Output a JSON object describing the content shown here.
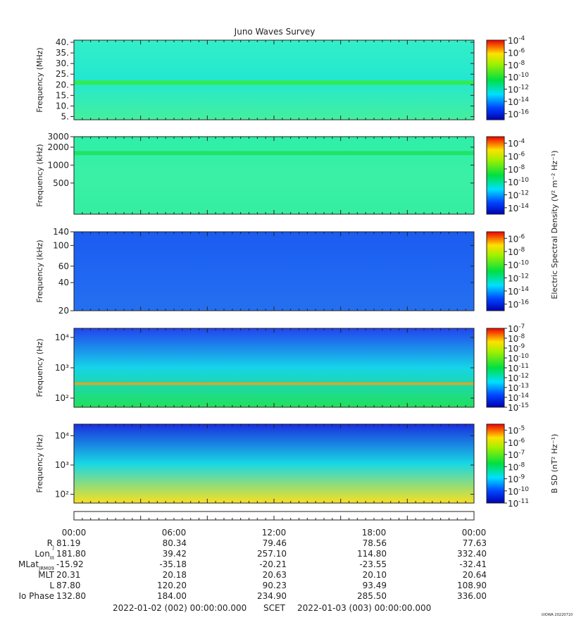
{
  "title": "Juno Waves Survey",
  "footer": {
    "start": "2022-01-02 (002) 00:00:00.000",
    "scet": "SCET",
    "end": "2022-01-03 (003) 00:00:00.000",
    "stamp": "UIOWA 20220710"
  },
  "chart_data": [
    {
      "type": "heatmap",
      "id": "p1",
      "ylabel": "Frequency (MHz)",
      "ytick_labels": [
        "5.",
        "10.",
        "15.",
        "20.",
        "25.",
        "30.",
        "35.",
        "40."
      ],
      "ytick_values": [
        5,
        10,
        15,
        20,
        25,
        30,
        35,
        40
      ],
      "ylim": [
        3.5,
        41
      ],
      "yscale": "linear",
      "colorbar": {
        "exponents": [
          "-4",
          "-6",
          "-8",
          "-10",
          "-12",
          "-14",
          "-16"
        ],
        "range": [
          -17,
          -4
        ],
        "label": ""
      },
      "background": [
        "#33eec8",
        "#22e8d0",
        "#44ef9e"
      ],
      "bands": [
        {
          "value": 21,
          "width": 2,
          "color": "#35ea45"
        }
      ]
    },
    {
      "type": "heatmap",
      "id": "p2",
      "ylabel": "Frequency (kHz)",
      "ytick_labels": [
        "500",
        "1000",
        "2000",
        "3000"
      ],
      "ytick_values": [
        500,
        1000,
        2000,
        3000
      ],
      "ylim": [
        150,
        3000
      ],
      "yscale": "log",
      "colorbar": {
        "exponents": [
          "-4",
          "-6",
          "-8",
          "-10",
          "-12",
          "-14"
        ],
        "range": [
          -15,
          -3
        ],
        "label": "Electric Spectral Density (V² m⁻² Hz⁻¹)"
      },
      "background": [
        "#2fefa8",
        "#3af0a6",
        "#35eea0"
      ],
      "bands": [
        {
          "value": 1600,
          "width": 250,
          "color": "#1fe060"
        }
      ]
    },
    {
      "type": "heatmap",
      "id": "p3",
      "ylabel": "Frequency (kHz)",
      "ytick_labels": [
        "20",
        "40",
        "60",
        "100",
        "140"
      ],
      "ytick_values": [
        20,
        40,
        60,
        100,
        140
      ],
      "ylim": [
        20,
        140
      ],
      "yscale": "log",
      "colorbar": {
        "exponents": [
          "-6",
          "-8",
          "-10",
          "-12",
          "-14",
          "-16"
        ],
        "range": [
          -17,
          -5
        ],
        "label": ""
      },
      "background": [
        "#1c5cf0",
        "#1f66f2",
        "#2570f0"
      ],
      "bands": []
    },
    {
      "type": "heatmap",
      "id": "p4",
      "ylabel": "Frequency (Hz)",
      "ytick_labels": [
        "10²",
        "10³",
        "10⁴"
      ],
      "ytick_values": [
        100,
        1000,
        10000
      ],
      "ylim": [
        50,
        20000
      ],
      "yscale": "log",
      "colorbar": {
        "exponents": [
          "-7",
          "-8",
          "-9",
          "-10",
          "-11",
          "-12",
          "-13",
          "-14",
          "-15"
        ],
        "range": [
          -15,
          -7
        ],
        "label": ""
      },
      "background": [
        "#2244ee",
        "#16d4e8",
        "#22e05a"
      ],
      "bands": [
        {
          "value": 300,
          "width": 60,
          "color": "#f0a020"
        }
      ]
    },
    {
      "type": "heatmap",
      "id": "p5",
      "ylabel": "Frequency (Hz)",
      "ytick_labels": [
        "10²",
        "10³",
        "10⁴"
      ],
      "ytick_values": [
        100,
        1000,
        10000
      ],
      "ylim": [
        50,
        25000
      ],
      "yscale": "log",
      "colorbar": {
        "exponents": [
          "-5",
          "-6",
          "-7",
          "-8",
          "-9",
          "-10",
          "-11"
        ],
        "range": [
          -11,
          -4.5
        ],
        "label": "B SD (nT² Hz⁻¹)"
      },
      "background": [
        "#1a2ee0",
        "#18d8e4",
        "#f8e020"
      ],
      "bands": []
    }
  ],
  "ephemeris": {
    "time_ticks": [
      "00:00",
      "06:00",
      "12:00",
      "18:00",
      "00:00"
    ],
    "rows": [
      {
        "label": "R",
        "sub": "J",
        "values": [
          "81.19",
          "80.34",
          "79.46",
          "78.56",
          "77.63"
        ]
      },
      {
        "label": "Lon",
        "sub": "III",
        "values": [
          "181.80",
          "39.42",
          "257.10",
          "114.80",
          "332.40"
        ]
      },
      {
        "label": "MLat",
        "sub": "JRM09",
        "values": [
          "-15.92",
          "-35.18",
          "-20.21",
          "-23.55",
          "-32.41"
        ]
      },
      {
        "label": "MLT",
        "sub": "",
        "values": [
          "20.31",
          "20.18",
          "20.63",
          "20.10",
          "20.64"
        ]
      },
      {
        "label": "L",
        "sub": "",
        "values": [
          "87.80",
          "120.20",
          "90.23",
          "93.49",
          "108.90"
        ]
      },
      {
        "label": "Io Phase",
        "sub": "",
        "values": [
          "132.80",
          "184.00",
          "234.90",
          "285.50",
          "336.00"
        ]
      }
    ]
  }
}
